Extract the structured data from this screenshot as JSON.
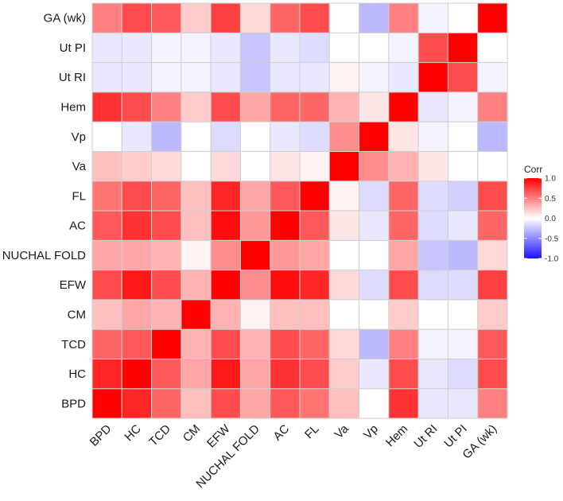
{
  "chart_data": {
    "type": "heatmap",
    "title": "",
    "xlabel": "",
    "ylabel": "",
    "variables": [
      "BPD",
      "HC",
      "TCD",
      "CM",
      "EFW",
      "NUCHAL FOLD",
      "AC",
      "FL",
      "Va",
      "Vp",
      "Hem",
      "Ut RI",
      "Ut PI",
      "GA (wk)"
    ],
    "matrix": [
      [
        1.0,
        0.85,
        0.6,
        0.25,
        0.7,
        0.35,
        0.65,
        0.55,
        0.25,
        0.0,
        0.8,
        -0.1,
        -0.1,
        0.5
      ],
      [
        0.85,
        1.0,
        0.65,
        0.35,
        0.9,
        0.35,
        0.8,
        0.7,
        0.2,
        -0.1,
        0.7,
        -0.1,
        -0.15,
        0.7
      ],
      [
        0.6,
        0.65,
        1.0,
        0.3,
        0.7,
        0.3,
        0.7,
        0.6,
        0.15,
        -0.3,
        0.5,
        -0.05,
        -0.05,
        0.65
      ],
      [
        0.25,
        0.35,
        0.3,
        1.0,
        0.3,
        0.05,
        0.25,
        0.25,
        0.0,
        0.0,
        0.2,
        0.0,
        0.0,
        0.2
      ],
      [
        0.7,
        0.9,
        0.7,
        0.3,
        1.0,
        0.45,
        0.95,
        0.85,
        0.15,
        -0.15,
        0.7,
        -0.15,
        -0.15,
        0.75
      ],
      [
        0.35,
        0.35,
        0.3,
        0.05,
        0.45,
        1.0,
        0.4,
        0.35,
        0.0,
        0.0,
        0.35,
        -0.25,
        -0.3,
        0.15
      ],
      [
        0.65,
        0.8,
        0.7,
        0.25,
        0.95,
        0.4,
        1.0,
        0.65,
        0.1,
        -0.1,
        0.6,
        -0.15,
        -0.1,
        0.6
      ],
      [
        0.55,
        0.7,
        0.6,
        0.25,
        0.85,
        0.35,
        0.65,
        1.0,
        0.05,
        -0.15,
        0.6,
        -0.15,
        -0.2,
        0.7
      ],
      [
        0.25,
        0.2,
        0.15,
        0.0,
        0.15,
        0.0,
        0.1,
        0.05,
        1.0,
        0.45,
        0.3,
        0.1,
        0.0,
        0.0
      ],
      [
        0.0,
        -0.1,
        -0.3,
        0.0,
        -0.15,
        0.0,
        -0.1,
        -0.15,
        0.45,
        1.0,
        0.1,
        -0.05,
        0.0,
        -0.3
      ],
      [
        0.8,
        0.7,
        0.5,
        0.2,
        0.7,
        0.35,
        0.6,
        0.6,
        0.3,
        0.1,
        1.0,
        -0.1,
        -0.05,
        0.5
      ],
      [
        -0.1,
        -0.1,
        -0.05,
        -0.05,
        -0.1,
        -0.25,
        -0.1,
        -0.1,
        0.05,
        -0.05,
        -0.1,
        1.0,
        0.7,
        -0.05
      ],
      [
        -0.1,
        -0.1,
        -0.05,
        -0.05,
        -0.1,
        -0.25,
        -0.1,
        -0.15,
        0.0,
        0.0,
        -0.05,
        0.7,
        1.0,
        0.0
      ],
      [
        0.5,
        0.7,
        0.65,
        0.2,
        0.75,
        0.15,
        0.6,
        0.7,
        0.0,
        -0.3,
        0.5,
        -0.05,
        0.0,
        1.0
      ]
    ],
    "value_range": [
      -1,
      1
    ],
    "colors": {
      "low": "#1f14ff",
      "mid": "#ffffff",
      "high": "#ff0000",
      "grid": "#cfcfcf"
    },
    "legend": {
      "title": "Corr",
      "position": "right",
      "ticks": [
        {
          "value": 1.0,
          "label": "1.0"
        },
        {
          "value": 0.5,
          "label": "0.5"
        },
        {
          "value": 0.0,
          "label": "0.0"
        },
        {
          "value": -0.5,
          "label": "-0.5"
        },
        {
          "value": -1.0,
          "label": "-1.0"
        }
      ]
    }
  }
}
